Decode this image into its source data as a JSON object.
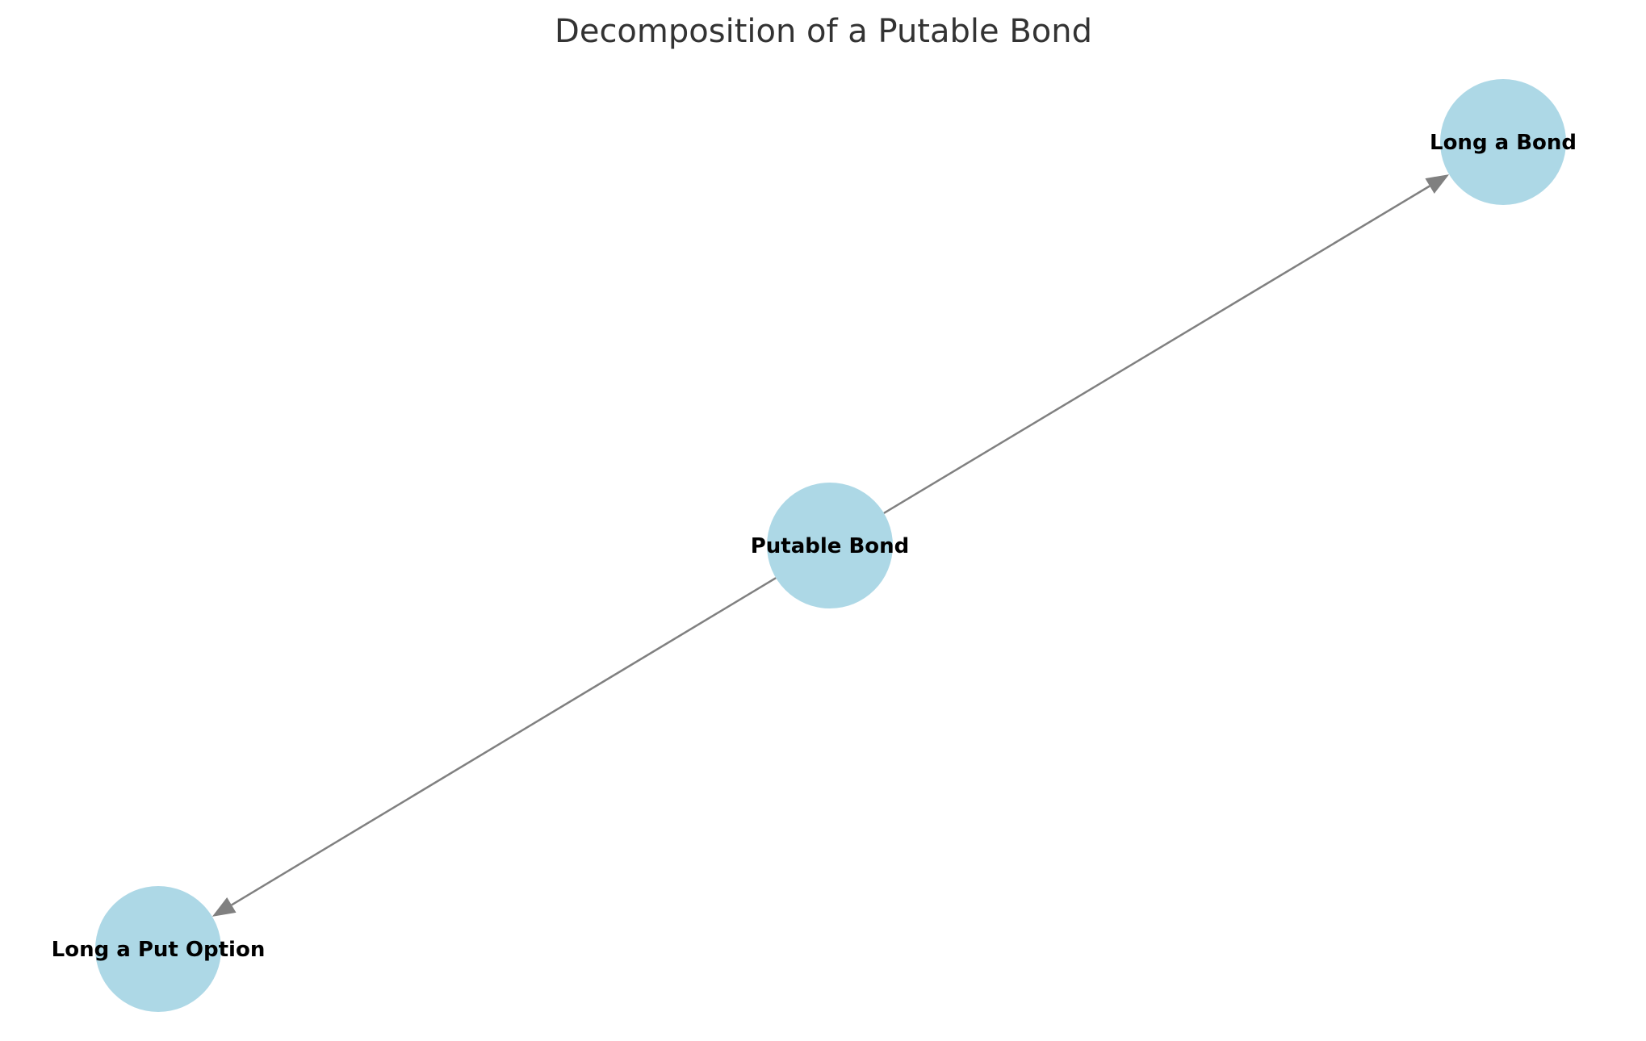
{
  "title": "Decomposition of a Putable Bond",
  "colors": {
    "node_fill": "#ADD8E6",
    "edge": "#808080",
    "title": "#333333",
    "label": "#000000",
    "background": "#ffffff"
  },
  "nodes": [
    {
      "id": "putable",
      "label": "Putable Bond"
    },
    {
      "id": "bond",
      "label": "Long a Bond"
    },
    {
      "id": "put",
      "label": "Long a Put Option"
    }
  ],
  "edges": [
    {
      "from": "putable",
      "to": "bond"
    },
    {
      "from": "putable",
      "to": "put"
    }
  ]
}
